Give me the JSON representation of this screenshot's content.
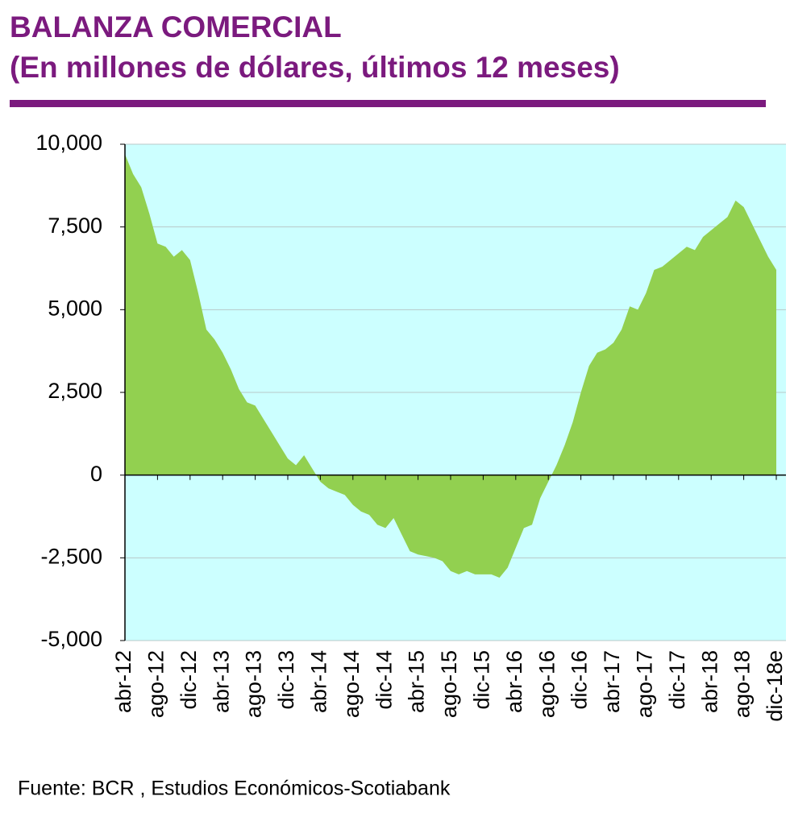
{
  "chart_data": {
    "type": "area",
    "title": "BALANZA COMERCIAL",
    "subtitle": "(En millones de dólares, últimos 12 meses)",
    "source": "Fuente: BCR , Estudios Económicos-Scotiabank",
    "categories": [
      "abr-12",
      null,
      null,
      null,
      "ago-12",
      null,
      null,
      null,
      "dic-12",
      null,
      null,
      null,
      "abr-13",
      null,
      null,
      null,
      "ago-13",
      null,
      null,
      null,
      "dic-13",
      null,
      null,
      null,
      "abr-14",
      null,
      null,
      null,
      "ago-14",
      null,
      null,
      null,
      "dic-14",
      null,
      null,
      null,
      "abr-15",
      null,
      null,
      null,
      "ago-15",
      null,
      null,
      null,
      "dic-15",
      null,
      null,
      null,
      "abr-16",
      null,
      null,
      null,
      "ago-16",
      null,
      null,
      null,
      "dic-16",
      null,
      null,
      null,
      "abr-17",
      null,
      null,
      null,
      "ago-17",
      null,
      null,
      null,
      "dic-17",
      null,
      null,
      null,
      "abr-18",
      null,
      null,
      null,
      "ago-18",
      null,
      null,
      null,
      "dic-18e"
    ],
    "values": [
      9700,
      9100,
      8700,
      7900,
      7000,
      6900,
      6600,
      6800,
      6500,
      5500,
      4400,
      4100,
      3700,
      3200,
      2600,
      2200,
      2100,
      1700,
      1300,
      900,
      500,
      300,
      600,
      200,
      -200,
      -400,
      -500,
      -600,
      -900,
      -1100,
      -1200,
      -1500,
      -1600,
      -1300,
      -1800,
      -2300,
      -2400,
      -2450,
      -2500,
      -2600,
      -2900,
      -3000,
      -2900,
      -3000,
      -3000,
      -3000,
      -3100,
      -2800,
      -2200,
      -1600,
      -1500,
      -700,
      -200,
      300,
      900,
      1600,
      2500,
      3300,
      3700,
      3800,
      4000,
      4400,
      5100,
      5000,
      5500,
      6200,
      6300,
      6500,
      6700,
      6900,
      6800,
      7200,
      7400,
      7600,
      7800,
      8300,
      8100,
      7600,
      7100,
      6600,
      6200
    ],
    "color": "#92d050",
    "background": "#ccffff",
    "ylim": [
      -5000,
      10000
    ],
    "yticks": [
      {
        "value": 10000,
        "label": "10,000"
      },
      {
        "value": 7500,
        "label": "7,500"
      },
      {
        "value": 5000,
        "label": "5,000"
      },
      {
        "value": 2500,
        "label": "2,500"
      },
      0,
      {
        "value": -2500,
        "label": "-2,500"
      },
      {
        "value": -5000,
        "label": "-5,000"
      }
    ],
    "grid": true
  }
}
